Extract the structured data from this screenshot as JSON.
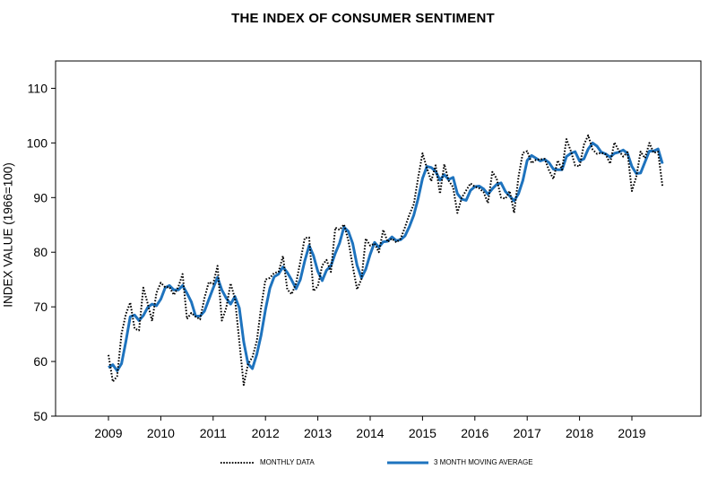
{
  "chart_data": {
    "type": "line",
    "title": "THE INDEX OF CONSUMER SENTIMENT",
    "xlabel": "",
    "ylabel": "INDEX VALUE (1966=100)",
    "ylim": [
      50,
      115
    ],
    "yticks": [
      50,
      60,
      70,
      80,
      90,
      100,
      110
    ],
    "xticks": [
      "2009",
      "2010",
      "2011",
      "2012",
      "2013",
      "2014",
      "2015",
      "2016",
      "2017",
      "2018",
      "2019"
    ],
    "x_start": "2009-01",
    "x_frequency": "monthly",
    "grid": false,
    "legend_position": "bottom",
    "series": [
      {
        "name": "MONTHLY DATA",
        "style": "dotted",
        "color": "#000000",
        "values": [
          61.2,
          56.3,
          57.3,
          65.1,
          68.7,
          70.8,
          66.0,
          65.7,
          73.5,
          70.6,
          67.4,
          72.5,
          74.4,
          73.6,
          73.6,
          72.2,
          73.6,
          76.0,
          67.8,
          68.9,
          68.2,
          67.7,
          71.6,
          74.5,
          74.2,
          77.5,
          67.5,
          69.8,
          74.3,
          71.5,
          63.7,
          55.7,
          59.5,
          60.8,
          63.7,
          69.9,
          75.0,
          75.3,
          76.2,
          76.4,
          79.3,
          73.2,
          72.3,
          74.3,
          78.3,
          82.6,
          82.7,
          72.9,
          73.8,
          77.6,
          78.6,
          76.4,
          84.5,
          84.1,
          85.1,
          82.1,
          77.5,
          73.2,
          75.1,
          82.5,
          81.2,
          81.6,
          80.0,
          84.1,
          81.9,
          82.5,
          81.8,
          82.5,
          84.6,
          86.9,
          88.8,
          93.6,
          98.1,
          95.4,
          93.0,
          95.9,
          90.7,
          96.1,
          93.1,
          91.9,
          87.2,
          90.0,
          91.3,
          92.6,
          92.0,
          91.7,
          91.0,
          89.0,
          94.7,
          93.5,
          90.0,
          89.8,
          91.2,
          87.2,
          93.8,
          98.2,
          98.5,
          96.3,
          96.9,
          97.0,
          97.1,
          95.0,
          93.4,
          96.8,
          95.1,
          100.7,
          98.5,
          95.9,
          95.7,
          99.7,
          101.4,
          98.8,
          98.0,
          98.2,
          97.9,
          96.2,
          100.1,
          98.6,
          97.5,
          98.3,
          91.2,
          93.8,
          98.4,
          97.2,
          100.0,
          98.2,
          98.4,
          92.1
        ]
      },
      {
        "name": "3 MONTH MOVING AVERAGE",
        "style": "solid",
        "color": "#1E73BE",
        "values": [
          58.9,
          59.4,
          58.3,
          59.6,
          63.7,
          68.2,
          68.5,
          67.5,
          68.4,
          69.9,
          70.5,
          70.2,
          71.4,
          73.5,
          73.9,
          73.1,
          73.1,
          73.9,
          72.5,
          70.9,
          68.3,
          68.3,
          69.2,
          71.3,
          73.4,
          75.4,
          73.1,
          71.6,
          70.5,
          71.9,
          69.8,
          63.6,
          59.6,
          58.7,
          61.3,
          64.8,
          69.5,
          73.4,
          75.5,
          76.0,
          77.3,
          76.3,
          74.9,
          73.3,
          75.0,
          78.4,
          81.2,
          79.4,
          76.5,
          74.8,
          76.7,
          77.5,
          79.8,
          81.7,
          84.6,
          83.8,
          81.6,
          77.6,
          75.3,
          76.9,
          79.6,
          81.8,
          80.9,
          81.9,
          82.0,
          82.8,
          82.1,
          82.3,
          83.0,
          84.7,
          86.8,
          89.8,
          93.5,
          95.7,
          95.5,
          94.8,
          93.2,
          94.2,
          93.3,
          93.7,
          90.7,
          89.7,
          89.5,
          91.3,
          92.0,
          92.1,
          91.6,
          90.6,
          91.6,
          92.4,
          92.7,
          91.1,
          90.3,
          89.4,
          90.7,
          93.1,
          96.8,
          97.7,
          97.2,
          96.7,
          97.0,
          96.4,
          95.2,
          95.1,
          95.1,
          97.5,
          98.1,
          98.4,
          96.7,
          97.1,
          98.9,
          100.0,
          99.4,
          98.3,
          98.0,
          97.4,
          98.1,
          98.3,
          98.7,
          98.1,
          95.7,
          94.4,
          94.5,
          96.5,
          98.5,
          98.5,
          98.9,
          96.2
        ]
      }
    ]
  }
}
